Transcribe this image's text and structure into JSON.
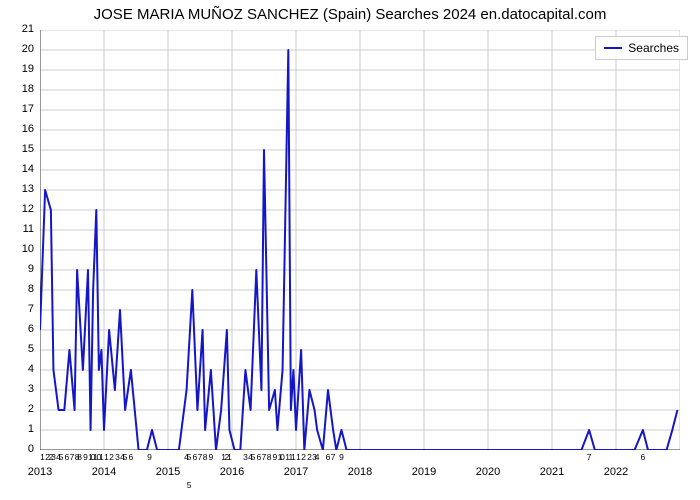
{
  "chart": {
    "type": "line",
    "title": "JOSE MARIA MUÑOZ SANCHEZ (Spain) Searches 2024 en.datocapital.com",
    "title_fontsize": 15,
    "background_color": "#ffffff",
    "line_color": "#1516c6",
    "line_width": 2,
    "grid_color": "#cccccc",
    "axis_color": "#333333",
    "label_fontsize": 11,
    "minor_label_fontsize": 9,
    "y": {
      "min": 0,
      "max": 21,
      "tick_step": 1
    },
    "x": {
      "min": 2013,
      "max": 2023,
      "major_tick_step": 1,
      "major_labels": [
        "2013",
        "2014",
        "2015",
        "2016",
        "2017",
        "2018",
        "2019",
        "2020",
        "2021",
        "2022",
        ""
      ],
      "minor_labels_row": [
        {
          "x": 2013.04,
          "t": "1"
        },
        {
          "x": 2013.12,
          "t": "2"
        },
        {
          "x": 2013.17,
          "t": "2"
        },
        {
          "x": 2013.21,
          "t": "3"
        },
        {
          "x": 2013.29,
          "t": "4"
        },
        {
          "x": 2013.33,
          "t": "5"
        },
        {
          "x": 2013.42,
          "t": "6"
        },
        {
          "x": 2013.5,
          "t": "7"
        },
        {
          "x": 2013.58,
          "t": "8"
        },
        {
          "x": 2013.62,
          "t": "8"
        },
        {
          "x": 2013.71,
          "t": "9"
        },
        {
          "x": 2013.79,
          "t": "1"
        },
        {
          "x": 2013.83,
          "t": "0"
        },
        {
          "x": 2013.87,
          "t": "1"
        },
        {
          "x": 2013.92,
          "t": "0"
        },
        {
          "x": 2013.96,
          "t": "1"
        },
        {
          "x": 2014.04,
          "t": "1"
        },
        {
          "x": 2014.12,
          "t": "2"
        },
        {
          "x": 2014.21,
          "t": "3"
        },
        {
          "x": 2014.29,
          "t": "4"
        },
        {
          "x": 2014.33,
          "t": "5"
        },
        {
          "x": 2014.42,
          "t": "6"
        },
        {
          "x": 2014.71,
          "t": "9"
        },
        {
          "x": 2015.29,
          "t": "4"
        },
        {
          "x": 2015.33,
          "t": "5"
        },
        {
          "x": 2015.42,
          "t": "6"
        },
        {
          "x": 2015.5,
          "t": "7"
        },
        {
          "x": 2015.58,
          "t": "8"
        },
        {
          "x": 2015.67,
          "t": "9"
        },
        {
          "x": 2015.87,
          "t": "1"
        },
        {
          "x": 2015.92,
          "t": "2"
        },
        {
          "x": 2015.96,
          "t": "1"
        },
        {
          "x": 2016.21,
          "t": "3"
        },
        {
          "x": 2016.29,
          "t": "4"
        },
        {
          "x": 2016.33,
          "t": "5"
        },
        {
          "x": 2016.42,
          "t": "6"
        },
        {
          "x": 2016.5,
          "t": "7"
        },
        {
          "x": 2016.58,
          "t": "8"
        },
        {
          "x": 2016.67,
          "t": "9"
        },
        {
          "x": 2016.75,
          "t": "1"
        },
        {
          "x": 2016.79,
          "t": "0"
        },
        {
          "x": 2016.87,
          "t": "1"
        },
        {
          "x": 2016.92,
          "t": "1"
        },
        {
          "x": 2016.96,
          "t": "1"
        },
        {
          "x": 2017.04,
          "t": "1"
        },
        {
          "x": 2017.12,
          "t": "2"
        },
        {
          "x": 2017.21,
          "t": "2"
        },
        {
          "x": 2017.29,
          "t": "3"
        },
        {
          "x": 2017.33,
          "t": "4"
        },
        {
          "x": 2017.5,
          "t": "6"
        },
        {
          "x": 2017.58,
          "t": "7"
        },
        {
          "x": 2017.71,
          "t": "9"
        },
        {
          "x": 2021.58,
          "t": "7"
        },
        {
          "x": 2022.42,
          "t": "6"
        }
      ],
      "minor_labels_row2": [
        {
          "x": 2015.33,
          "t": "5"
        }
      ]
    },
    "legend": {
      "label": "Searches",
      "position": "top-right"
    },
    "series": [
      {
        "x": 2013.0,
        "y": 6
      },
      {
        "x": 2013.08,
        "y": 13
      },
      {
        "x": 2013.17,
        "y": 12
      },
      {
        "x": 2013.21,
        "y": 4
      },
      {
        "x": 2013.29,
        "y": 2
      },
      {
        "x": 2013.38,
        "y": 2
      },
      {
        "x": 2013.46,
        "y": 5
      },
      {
        "x": 2013.54,
        "y": 2
      },
      {
        "x": 2013.58,
        "y": 9
      },
      {
        "x": 2013.67,
        "y": 4
      },
      {
        "x": 2013.75,
        "y": 9
      },
      {
        "x": 2013.79,
        "y": 1
      },
      {
        "x": 2013.83,
        "y": 8
      },
      {
        "x": 2013.88,
        "y": 12
      },
      {
        "x": 2013.92,
        "y": 4
      },
      {
        "x": 2013.96,
        "y": 5
      },
      {
        "x": 2014.0,
        "y": 1
      },
      {
        "x": 2014.08,
        "y": 6
      },
      {
        "x": 2014.17,
        "y": 3
      },
      {
        "x": 2014.25,
        "y": 7
      },
      {
        "x": 2014.33,
        "y": 2
      },
      {
        "x": 2014.42,
        "y": 4
      },
      {
        "x": 2014.54,
        "y": 0
      },
      {
        "x": 2014.67,
        "y": 0
      },
      {
        "x": 2014.75,
        "y": 1
      },
      {
        "x": 2014.83,
        "y": 0
      },
      {
        "x": 2015.04,
        "y": 0
      },
      {
        "x": 2015.17,
        "y": 0
      },
      {
        "x": 2015.29,
        "y": 3
      },
      {
        "x": 2015.38,
        "y": 8
      },
      {
        "x": 2015.46,
        "y": 2
      },
      {
        "x": 2015.54,
        "y": 6
      },
      {
        "x": 2015.58,
        "y": 1
      },
      {
        "x": 2015.67,
        "y": 4
      },
      {
        "x": 2015.75,
        "y": 0
      },
      {
        "x": 2015.83,
        "y": 2
      },
      {
        "x": 2015.92,
        "y": 6
      },
      {
        "x": 2015.96,
        "y": 1
      },
      {
        "x": 2016.04,
        "y": 0
      },
      {
        "x": 2016.13,
        "y": 0
      },
      {
        "x": 2016.21,
        "y": 4
      },
      {
        "x": 2016.29,
        "y": 2
      },
      {
        "x": 2016.38,
        "y": 9
      },
      {
        "x": 2016.46,
        "y": 3
      },
      {
        "x": 2016.5,
        "y": 15
      },
      {
        "x": 2016.58,
        "y": 2
      },
      {
        "x": 2016.67,
        "y": 3
      },
      {
        "x": 2016.71,
        "y": 1
      },
      {
        "x": 2016.79,
        "y": 4
      },
      {
        "x": 2016.88,
        "y": 20
      },
      {
        "x": 2016.92,
        "y": 2
      },
      {
        "x": 2016.96,
        "y": 4
      },
      {
        "x": 2017.0,
        "y": 1
      },
      {
        "x": 2017.08,
        "y": 5
      },
      {
        "x": 2017.13,
        "y": 0
      },
      {
        "x": 2017.21,
        "y": 3
      },
      {
        "x": 2017.29,
        "y": 2
      },
      {
        "x": 2017.33,
        "y": 1
      },
      {
        "x": 2017.42,
        "y": 0
      },
      {
        "x": 2017.5,
        "y": 3
      },
      {
        "x": 2017.58,
        "y": 1
      },
      {
        "x": 2017.63,
        "y": 0
      },
      {
        "x": 2017.71,
        "y": 1
      },
      {
        "x": 2017.79,
        "y": 0
      },
      {
        "x": 2018.5,
        "y": 0
      },
      {
        "x": 2019.5,
        "y": 0
      },
      {
        "x": 2020.5,
        "y": 0
      },
      {
        "x": 2021.46,
        "y": 0
      },
      {
        "x": 2021.58,
        "y": 1
      },
      {
        "x": 2021.67,
        "y": 0
      },
      {
        "x": 2022.29,
        "y": 0
      },
      {
        "x": 2022.42,
        "y": 1
      },
      {
        "x": 2022.5,
        "y": 0
      },
      {
        "x": 2022.79,
        "y": 0
      },
      {
        "x": 2022.88,
        "y": 1
      },
      {
        "x": 2022.96,
        "y": 2
      }
    ]
  }
}
